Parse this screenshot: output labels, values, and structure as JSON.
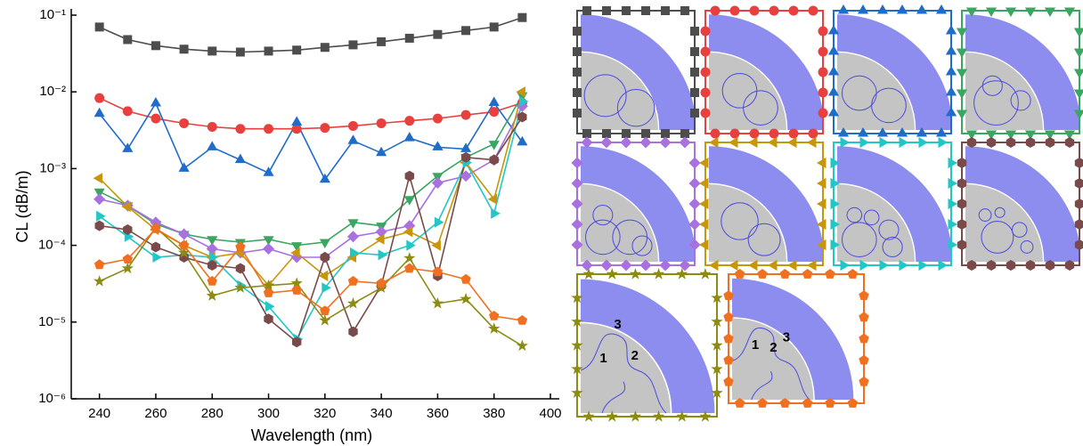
{
  "chart_data": {
    "type": "line",
    "log_y": true,
    "xlabel": "Wavelength (nm)",
    "ylabel": "CL (dB/m)",
    "x": [
      240,
      250,
      260,
      270,
      280,
      290,
      300,
      310,
      320,
      330,
      340,
      350,
      360,
      370,
      380,
      390
    ],
    "xlim": [
      230,
      400
    ],
    "xticks": [
      240,
      260,
      280,
      300,
      320,
      340,
      360,
      380,
      400
    ],
    "ylim": [
      1e-06,
      0.1
    ],
    "yticks": [
      {
        "value": 1e-06,
        "label": "10⁻⁶"
      },
      {
        "value": 1e-05,
        "label": "10⁻⁵"
      },
      {
        "value": 0.0001,
        "label": "10⁻⁴"
      },
      {
        "value": 0.001,
        "label": "10⁻³"
      },
      {
        "value": 0.01,
        "label": "10⁻²"
      },
      {
        "value": 0.1,
        "label": "10⁻¹"
      }
    ],
    "series": [
      {
        "color": "#4d4d4d",
        "marker": "square",
        "values": [
          0.07,
          0.048,
          0.04,
          0.036,
          0.034,
          0.033,
          0.034,
          0.035,
          0.038,
          0.041,
          0.045,
          0.05,
          0.056,
          0.063,
          0.07,
          0.093
        ]
      },
      {
        "color": "#e8403f",
        "marker": "circle",
        "values": [
          0.0083,
          0.0056,
          0.0045,
          0.0039,
          0.0035,
          0.0033,
          0.0033,
          0.0033,
          0.0034,
          0.0036,
          0.0039,
          0.0042,
          0.0045,
          0.005,
          0.0055,
          0.0072
        ]
      },
      {
        "color": "#1f6cc9",
        "marker": "triangle-up",
        "values": [
          0.0052,
          0.0018,
          0.0071,
          0.001,
          0.0019,
          0.0013,
          0.00088,
          0.004,
          0.00072,
          0.0023,
          0.0016,
          0.0025,
          0.0019,
          0.0018,
          0.0072,
          0.0022
        ]
      },
      {
        "color": "#3aa661",
        "marker": "triangle-down",
        "values": [
          0.0005,
          0.00033,
          0.00019,
          0.00014,
          0.00012,
          0.00011,
          0.00012,
          0.0001,
          0.00011,
          0.0002,
          0.00018,
          0.0004,
          0.0008,
          0.0014,
          0.0021,
          0.009
        ]
      },
      {
        "color": "#a970e0",
        "marker": "diamond",
        "values": [
          0.0004,
          0.00033,
          0.0002,
          0.00014,
          9e-05,
          8e-05,
          9e-05,
          7e-05,
          7e-05,
          0.00013,
          0.00015,
          0.00018,
          0.00065,
          0.0008,
          0.0013,
          0.0065
        ]
      },
      {
        "color": "#c8960a",
        "marker": "triangle-left",
        "values": [
          0.00075,
          0.00032,
          0.00016,
          0.0001,
          7e-05,
          8e-05,
          3e-05,
          8e-05,
          4e-05,
          7e-05,
          0.00012,
          0.00015,
          0.0001,
          0.0012,
          0.0004,
          0.01
        ]
      },
      {
        "color": "#22c6c6",
        "marker": "triangle-right",
        "values": [
          0.00024,
          0.00013,
          7e-05,
          7.5e-05,
          7e-05,
          3e-05,
          1.6e-05,
          6e-06,
          2.8e-05,
          8e-05,
          7.5e-05,
          0.0001,
          0.0002,
          0.0012,
          0.00026,
          0.0075
        ]
      },
      {
        "color": "#7a4a4a",
        "marker": "hexagon",
        "values": [
          0.00018,
          0.00016,
          9.5e-05,
          7e-05,
          5.5e-05,
          5e-05,
          1.1e-05,
          5.5e-06,
          7e-05,
          7.5e-06,
          3e-05,
          0.0008,
          4e-05,
          0.0014,
          0.0013,
          0.0047
        ]
      },
      {
        "color": "#8c8c14",
        "marker": "star",
        "values": [
          3.4e-05,
          5e-05,
          0.00017,
          8e-05,
          2.2e-05,
          2.8e-05,
          3e-05,
          3.2e-05,
          1.05e-05,
          1.75e-05,
          2.8e-05,
          6.8e-05,
          1.75e-05,
          2e-05,
          8.2e-06,
          4.9e-06
        ]
      },
      {
        "color": "#f07020",
        "marker": "pentagon",
        "values": [
          5.6e-05,
          6.6e-05,
          0.000165,
          0.0001,
          3.4e-05,
          9.5e-05,
          2.4e-05,
          2.6e-05,
          1.4e-05,
          3.4e-05,
          3.2e-05,
          5e-05,
          4.5e-05,
          3.6e-05,
          1.2e-05,
          1.05e-05
        ]
      }
    ],
    "inset_labels": [
      [
        "1",
        "2",
        "3"
      ],
      [
        "1",
        "2",
        "3"
      ]
    ]
  }
}
